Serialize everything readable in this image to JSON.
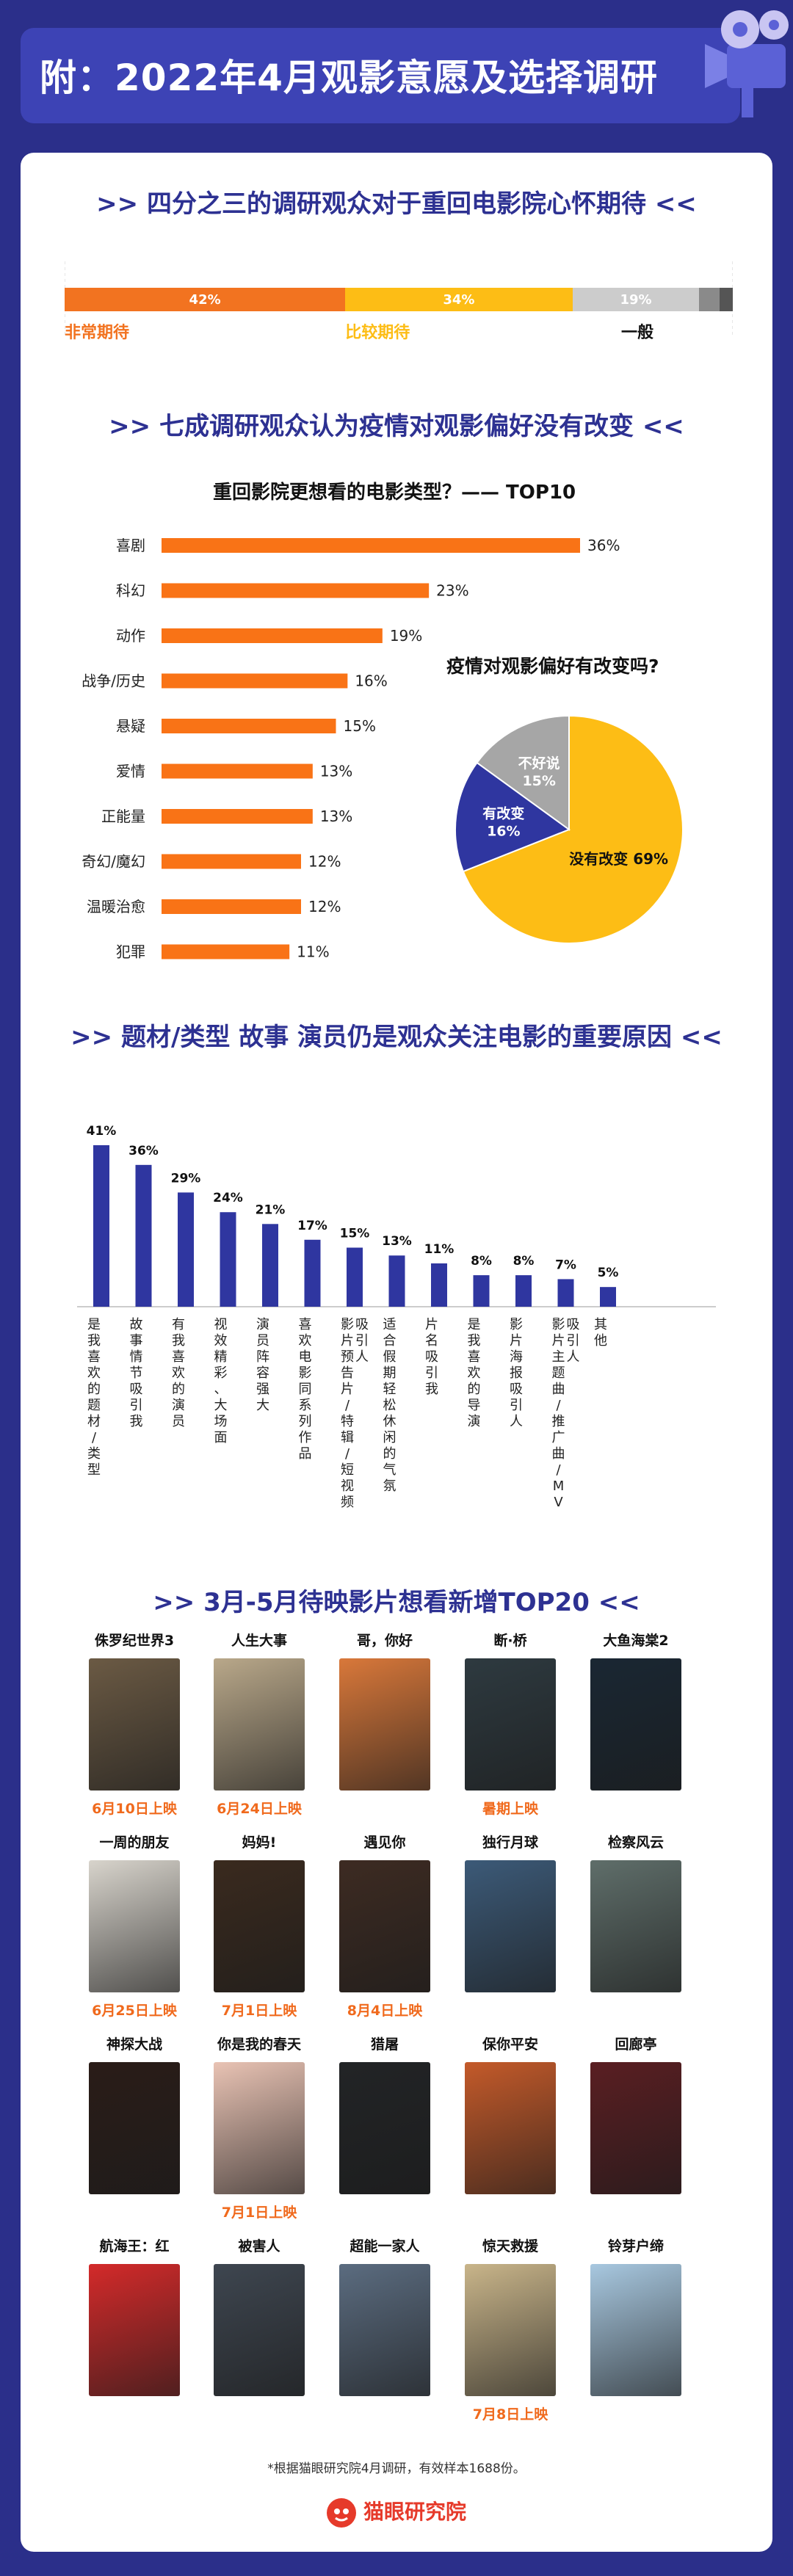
{
  "header": {
    "title": "附：2022年4月观影意愿及选择调研"
  },
  "section1": {
    "title": ">> 四分之三的调研观众对于重回电影院心怀期待 <<",
    "chart_data": {
      "type": "bar",
      "stacked": true,
      "segments": [
        {
          "name": "非常期待",
          "value": 42,
          "label": "42%",
          "color": "#f27320"
        },
        {
          "name": "比较期待",
          "value": 34,
          "label": "34%",
          "color": "#fdbd15"
        },
        {
          "name": "一般",
          "value": 19,
          "label": "19%",
          "color": "#cccccc"
        },
        {
          "name": "",
          "value": 3,
          "label": "",
          "color": "#8a8a8a"
        },
        {
          "name": "",
          "value": 2,
          "label": "",
          "color": "#555555"
        }
      ]
    }
  },
  "section2": {
    "title": ">> 七成调研观众认为疫情对观影偏好没有改变 <<",
    "chart_data": [
      {
        "type": "bar",
        "orientation": "horizontal",
        "title": "重回影院更想看的电影类型？—— TOP10",
        "categories": [
          "喜剧",
          "科幻",
          "动作",
          "战争/历史",
          "悬疑",
          "爱情",
          "正能量",
          "奇幻/魔幻",
          "温暖治愈",
          "犯罪"
        ],
        "values": [
          36,
          23,
          19,
          16,
          15,
          13,
          13,
          12,
          12,
          11
        ],
        "labels": [
          "36%",
          "23%",
          "19%",
          "16%",
          "15%",
          "13%",
          "13%",
          "12%",
          "12%",
          "11%"
        ],
        "color": "#f97316"
      },
      {
        "type": "pie",
        "title": "疫情对观影偏好有改变吗?",
        "slices": [
          {
            "name": "没有改变",
            "value": 69,
            "label": "没有改变 69%",
            "color": "#fdbd15"
          },
          {
            "name": "有改变",
            "value": 16,
            "label": "有改变",
            "pct": "16%",
            "color": "#2f36a0"
          },
          {
            "name": "不好说",
            "value": 15,
            "label": "不好说",
            "pct": "15%",
            "color": "#a6a6a6"
          }
        ]
      }
    ]
  },
  "section3": {
    "title": ">> 题材/类型 故事 演员仍是观众关注电影的重要原因 <<",
    "chart_data": {
      "type": "bar",
      "categories": [
        "是我喜欢的题材/类型",
        "故事情节吸引我",
        "有我喜欢的演员",
        "视效精彩、大场面",
        "演员阵容强大",
        "喜欢电影同系列作品",
        "影片预告片/特辑/短视频吸引人",
        "适合假期轻松休闲的气氛",
        "片名吸引我",
        "是我喜欢的导演",
        "影片海报吸引人",
        "影片主题曲/推广曲/MV吸引人",
        "其他"
      ],
      "values": [
        41,
        36,
        29,
        24,
        21,
        17,
        15,
        13,
        11,
        8,
        8,
        7,
        5
      ],
      "labels": [
        "41%",
        "36%",
        "29%",
        "24%",
        "21%",
        "17%",
        "15%",
        "13%",
        "11%",
        "8%",
        "8%",
        "7%",
        "5%"
      ],
      "color": "#2f36a0"
    }
  },
  "section4": {
    "title": ">> 3月-5月待映影片想看新增TOP20 <<",
    "movies": [
      {
        "name": "侏罗纪世界3",
        "date": "6月10日上映",
        "color": "#6b5a44"
      },
      {
        "name": "人生大事",
        "date": "6月24日上映",
        "color": "#b9a88a"
      },
      {
        "name": "哥，你好",
        "date": "",
        "color": "#d9783a"
      },
      {
        "name": "断·桥",
        "date": "暑期上映",
        "color": "#2e3a40"
      },
      {
        "name": "大鱼海棠2",
        "date": "",
        "color": "#1a2733"
      },
      {
        "name": "一周的朋友",
        "date": "6月25日上映",
        "color": "#d8d4cc"
      },
      {
        "name": "妈妈!",
        "date": "7月1日上映",
        "color": "#3a2a1e"
      },
      {
        "name": "遇见你",
        "date": "8月4日上映",
        "color": "#3d2b22"
      },
      {
        "name": "独行月球",
        "date": "",
        "color": "#3c5a78"
      },
      {
        "name": "检察风云",
        "date": "",
        "color": "#5f6e6a"
      },
      {
        "name": "神探大战",
        "date": "",
        "color": "#2a1c18"
      },
      {
        "name": "你是我的春天",
        "date": "7月1日上映",
        "color": "#e9c3b4"
      },
      {
        "name": "猎屠",
        "date": "",
        "color": "#222426"
      },
      {
        "name": "保你平安",
        "date": "",
        "color": "#c45a2a"
      },
      {
        "name": "回廊亭",
        "date": "",
        "color": "#5a1e22"
      },
      {
        "name": "航海王：红",
        "date": "",
        "color": "#d42a2a"
      },
      {
        "name": "被害人",
        "date": "",
        "color": "#3e4650"
      },
      {
        "name": "超能一家人",
        "date": "",
        "color": "#5b6c80"
      },
      {
        "name": "惊天救援",
        "date": "7月8日上映",
        "color": "#c9b58a"
      },
      {
        "name": "铃芽户缔",
        "date": "",
        "color": "#a8c8e0"
      }
    ]
  },
  "footer": {
    "note": "*根据猫眼研究院4月调研，有效样本1688份。",
    "brand": "猫眼研究院"
  }
}
